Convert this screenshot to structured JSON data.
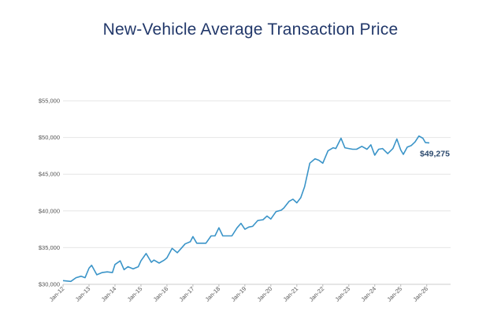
{
  "chart_data": {
    "type": "line",
    "title": "New-Vehicle Average Transaction Price",
    "xlabel": "",
    "ylabel": "",
    "ylim": [
      30000,
      55000
    ],
    "yticks": [
      30000,
      35000,
      40000,
      45000,
      50000,
      55000
    ],
    "ytick_labels": [
      "$30,000",
      "$35,000",
      "$40,000",
      "$45,000",
      "$50,000",
      "$55,000"
    ],
    "xtick_labels": [
      "Jan-12",
      "Jan-13",
      "Jan-14",
      "Jan-15",
      "Jan-16",
      "Jan-17",
      "Jan-18",
      "Jan-19",
      "Jan-20",
      "Jan-21",
      "Jan-22",
      "Jan-23",
      "Jan-24",
      "Jan-25",
      "Jan-26"
    ],
    "grid": true,
    "end_label": "$49,275",
    "colors": {
      "line": "#3a94c8",
      "title": "#22386a",
      "end_label": "#2c4a6e",
      "grid": "#e6e6e6"
    },
    "series": [
      {
        "x": [
          2012.0,
          2012.3,
          2012.5,
          2012.7,
          2012.85,
          2013.0,
          2013.1,
          2013.3,
          2013.5,
          2013.7,
          2013.9,
          2014.0,
          2014.2,
          2014.35,
          2014.5,
          2014.7,
          2014.9,
          2015.0,
          2015.2,
          2015.4,
          2015.5,
          2015.7,
          2015.9,
          2016.0,
          2016.2,
          2016.4,
          2016.5,
          2016.7,
          2016.9,
          2017.0,
          2017.15,
          2017.3,
          2017.5,
          2017.7,
          2017.85,
          2018.0,
          2018.15,
          2018.3,
          2018.5,
          2018.7,
          2018.85,
          2019.0,
          2019.15,
          2019.3,
          2019.5,
          2019.7,
          2019.85,
          2020.0,
          2020.2,
          2020.4,
          2020.5,
          2020.7,
          2020.85,
          2021.0,
          2021.15,
          2021.3,
          2021.5,
          2021.7,
          2021.85,
          2022.0,
          2022.2,
          2022.4,
          2022.5,
          2022.7,
          2022.85,
          2023.0,
          2023.15,
          2023.3,
          2023.5,
          2023.7,
          2023.85,
          2024.0,
          2024.15,
          2024.3,
          2024.5,
          2024.7,
          2024.85,
          2025.0,
          2025.1,
          2025.25,
          2025.4,
          2025.55,
          2025.7,
          2025.85,
          2025.95,
          2026.1
        ],
        "y": [
          30500,
          30400,
          30900,
          31100,
          30900,
          32200,
          32600,
          31300,
          31600,
          31700,
          31600,
          32700,
          33200,
          32000,
          32400,
          32100,
          32400,
          33200,
          34200,
          33000,
          33300,
          32900,
          33300,
          33600,
          34900,
          34300,
          34700,
          35500,
          35800,
          36500,
          35600,
          35600,
          35600,
          36600,
          36600,
          37700,
          36600,
          36600,
          36600,
          37700,
          38300,
          37500,
          37800,
          37900,
          38700,
          38800,
          39300,
          38900,
          39900,
          40100,
          40400,
          41300,
          41600,
          41100,
          41800,
          43300,
          46500,
          47100,
          46900,
          46500,
          48200,
          48600,
          48500,
          49900,
          48600,
          48500,
          48400,
          48400,
          48800,
          48400,
          49000,
          47600,
          48400,
          48500,
          47800,
          48500,
          49800,
          48300,
          47700,
          48700,
          48900,
          49400,
          50200,
          49900,
          49300,
          49275
        ]
      }
    ]
  }
}
